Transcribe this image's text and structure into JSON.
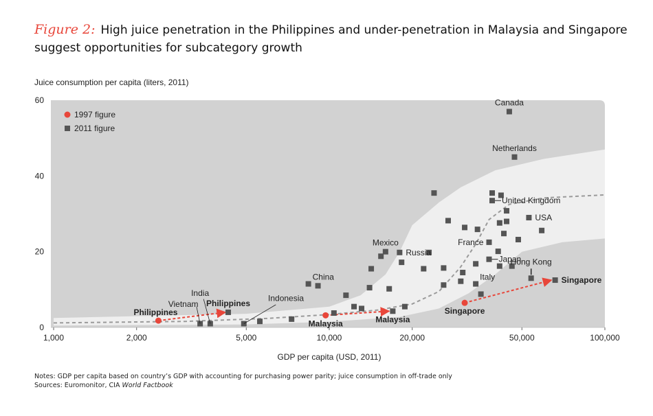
{
  "figure_label": "Figure 2:",
  "title": "High juice penetration in the Philippines and under-penetration in Malaysia and Singapore suggest opportunities for subcategory growth",
  "notes_line": "Notes: GDP per capita based on country’s GDP with accounting for purchasing power parity; juice consumption in off-trade only",
  "sources_prefix": "Sources: Euromonitor, CIA ",
  "sources_italic": "World Factbook",
  "colors": {
    "red": "#e8463a",
    "square": "#555555",
    "panel": "#d2d2d2",
    "band": "#efefef",
    "curve": "#9a9a9a"
  },
  "chart_data": {
    "type": "scatter",
    "ylabel": "Juice consumption per capita (liters, 2011)",
    "xlabel": "GDP per capita (USD, 2011)",
    "x_scale": "log",
    "xlim": [
      1000,
      100000
    ],
    "ylim": [
      0,
      60
    ],
    "x_ticks": [
      {
        "value": 1000,
        "label": "1,000"
      },
      {
        "value": 2000,
        "label": "2,000"
      },
      {
        "value": 5000,
        "label": "5,000"
      },
      {
        "value": 10000,
        "label": "10,000"
      },
      {
        "value": 20000,
        "label": "20,000"
      },
      {
        "value": 50000,
        "label": "50,000"
      },
      {
        "value": 100000,
        "label": "100,000"
      }
    ],
    "y_ticks": [
      {
        "value": 0,
        "label": "0"
      },
      {
        "value": 20,
        "label": "20"
      },
      {
        "value": 40,
        "label": "40"
      },
      {
        "value": 60,
        "label": "60"
      }
    ],
    "legend": {
      "placement": "top-left",
      "items": [
        {
          "label": "1997 figure",
          "marker": "circle",
          "color": "#e8463a"
        },
        {
          "label": "2011 figure",
          "marker": "square",
          "color": "#555555"
        }
      ]
    },
    "series": [
      {
        "name": "1997 figure",
        "points": [
          {
            "label": "Philippines",
            "x": 2400,
            "y": 1.8
          },
          {
            "label": "Malaysia",
            "x": 9700,
            "y": 3.2
          },
          {
            "label": "Singapore",
            "x": 31000,
            "y": 6.5
          }
        ]
      },
      {
        "name": "2011 figure",
        "points": [
          {
            "label": "Canada",
            "x": 45000,
            "y": 57
          },
          {
            "label": "Netherlands",
            "x": 47000,
            "y": 45
          },
          {
            "label": "United Kingdom",
            "x": 39000,
            "y": 33.5
          },
          {
            "label": "USA",
            "x": 53000,
            "y": 29
          },
          {
            "label": "France",
            "x": 38000,
            "y": 22.5
          },
          {
            "label": "Japan",
            "x": 38000,
            "y": 18
          },
          {
            "label": "Italy",
            "x": 34000,
            "y": 11.5
          },
          {
            "label": "Hong Kong",
            "x": 54000,
            "y": 13
          },
          {
            "label": "Singapore",
            "x": 66000,
            "y": 12.5
          },
          {
            "label": "Mexico",
            "x": 16000,
            "y": 20
          },
          {
            "label": "Russia",
            "x": 18000,
            "y": 19.8
          },
          {
            "label": "China",
            "x": 8400,
            "y": 11.5
          },
          {
            "label": "Malaysia",
            "x": 17000,
            "y": 4.3
          },
          {
            "label": "Philippines",
            "x": 4300,
            "y": 4.0
          },
          {
            "label": "India",
            "x": 3700,
            "y": 1.0
          },
          {
            "label": "Vietnam",
            "x": 3400,
            "y": 1.0
          },
          {
            "label": "Indonesia",
            "x": 4900,
            "y": 1.0
          },
          {
            "label": "",
            "x": 5600,
            "y": 1.6
          },
          {
            "label": "",
            "x": 7300,
            "y": 2.2
          },
          {
            "label": "",
            "x": 9100,
            "y": 11
          },
          {
            "label": "",
            "x": 10400,
            "y": 3.8
          },
          {
            "label": "",
            "x": 11500,
            "y": 8.5
          },
          {
            "label": "",
            "x": 12300,
            "y": 5.5
          },
          {
            "label": "",
            "x": 13100,
            "y": 5.0
          },
          {
            "label": "",
            "x": 14000,
            "y": 10.5
          },
          {
            "label": "",
            "x": 14200,
            "y": 15.5
          },
          {
            "label": "",
            "x": 15400,
            "y": 18.8
          },
          {
            "label": "",
            "x": 16500,
            "y": 10.2
          },
          {
            "label": "",
            "x": 18300,
            "y": 17.2
          },
          {
            "label": "",
            "x": 18800,
            "y": 5.5
          },
          {
            "label": "",
            "x": 22000,
            "y": 15.5
          },
          {
            "label": "",
            "x": 23000,
            "y": 19.8
          },
          {
            "label": "",
            "x": 24000,
            "y": 35.5
          },
          {
            "label": "",
            "x": 26000,
            "y": 11.2
          },
          {
            "label": "",
            "x": 26000,
            "y": 15.7
          },
          {
            "label": "",
            "x": 27000,
            "y": 28.2
          },
          {
            "label": "",
            "x": 30000,
            "y": 12.2
          },
          {
            "label": "",
            "x": 30500,
            "y": 14.5
          },
          {
            "label": "",
            "x": 31000,
            "y": 26.4
          },
          {
            "label": "",
            "x": 34000,
            "y": 16.8
          },
          {
            "label": "",
            "x": 34500,
            "y": 25.9
          },
          {
            "label": "",
            "x": 35500,
            "y": 8.8
          },
          {
            "label": "",
            "x": 39000,
            "y": 35.5
          },
          {
            "label": "",
            "x": 41000,
            "y": 20.1
          },
          {
            "label": "",
            "x": 41500,
            "y": 16.2
          },
          {
            "label": "",
            "x": 41500,
            "y": 27.6
          },
          {
            "label": "",
            "x": 42000,
            "y": 34.9
          },
          {
            "label": "",
            "x": 43000,
            "y": 24.8
          },
          {
            "label": "",
            "x": 44000,
            "y": 30.8
          },
          {
            "label": "",
            "x": 44000,
            "y": 28.0
          },
          {
            "label": "",
            "x": 46000,
            "y": 16.2
          },
          {
            "label": "",
            "x": 48500,
            "y": 23.2
          },
          {
            "label": "",
            "x": 59000,
            "y": 25.6
          }
        ]
      }
    ],
    "arrows": [
      {
        "label": "Philippines",
        "from": [
          2400,
          1.8
        ],
        "to": [
          4200,
          4.0
        ]
      },
      {
        "label": "Malaysia",
        "from": [
          9700,
          3.2
        ],
        "to": [
          16500,
          4.3
        ]
      },
      {
        "label": "Singapore",
        "from": [
          31000,
          6.5
        ],
        "to": [
          64000,
          12.5
        ]
      }
    ],
    "annotations": [
      {
        "text": "Canada",
        "x": 45000,
        "y": 57,
        "bold": false,
        "pos": "above"
      },
      {
        "text": "Netherlands",
        "x": 47000,
        "y": 45,
        "bold": false,
        "pos": "above"
      },
      {
        "text": "United Kingdom",
        "x": 39000,
        "y": 33.5,
        "bold": false,
        "pos": "right-line"
      },
      {
        "text": "USA",
        "x": 53000,
        "y": 29,
        "bold": false,
        "pos": "right"
      },
      {
        "text": "France",
        "x": 38000,
        "y": 22.5,
        "bold": false,
        "pos": "left"
      },
      {
        "text": "Japan",
        "x": 38000,
        "y": 18,
        "bold": false,
        "pos": "right-line"
      },
      {
        "text": "Italy",
        "x": 34000,
        "y": 11.5,
        "bold": false,
        "pos": "above-right"
      },
      {
        "text": "Hong Kong",
        "x": 54000,
        "y": 13,
        "bold": false,
        "pos": "above-line"
      },
      {
        "text": "Singapore",
        "x": 66000,
        "y": 12.5,
        "bold": true,
        "pos": "right"
      },
      {
        "text": "Mexico",
        "x": 16000,
        "y": 20,
        "bold": false,
        "pos": "above"
      },
      {
        "text": "Russia",
        "x": 18000,
        "y": 19.8,
        "bold": false,
        "pos": "right"
      },
      {
        "text": "China",
        "x": 8400,
        "y": 11.5,
        "bold": false,
        "pos": "above-right"
      },
      {
        "text": "India",
        "x": 3700,
        "y": 1.0,
        "bold": false,
        "pos": "above-leader"
      },
      {
        "text": "Vietnam",
        "x": 3400,
        "y": 1.0,
        "bold": false,
        "pos": "left-leader"
      },
      {
        "text": "Indonesia",
        "x": 4900,
        "y": 1.0,
        "bold": false,
        "pos": "above-leader"
      },
      {
        "text": "Philippines",
        "x": 4300,
        "y": 4.0,
        "bold": true,
        "pos": "above"
      },
      {
        "text": "Philippines",
        "x": 2400,
        "y": 1.8,
        "bold": true,
        "pos": "above-left"
      },
      {
        "text": "Malaysia",
        "x": 9700,
        "y": 3.2,
        "bold": true,
        "pos": "below"
      },
      {
        "text": "Malaysia",
        "x": 17000,
        "y": 4.3,
        "bold": true,
        "pos": "below"
      },
      {
        "text": "Singapore",
        "x": 31000,
        "y": 6.5,
        "bold": true,
        "pos": "below"
      }
    ]
  }
}
